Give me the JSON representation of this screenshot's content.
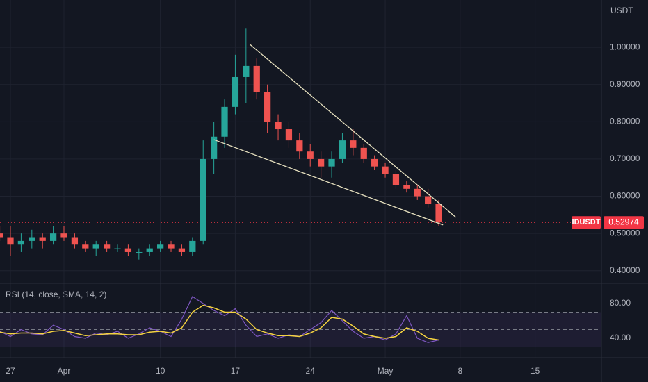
{
  "chart_data": [
    {
      "type": "candlestick",
      "symbol": "IDUSDT",
      "currency": "USDT",
      "x": [
        -1,
        0,
        1,
        2,
        3,
        4,
        5,
        6,
        7,
        8,
        9,
        10,
        11,
        12,
        13,
        14,
        15,
        16,
        17,
        18,
        19,
        20,
        21,
        22,
        23,
        24,
        25,
        26,
        27,
        28,
        29,
        30,
        31,
        32,
        33,
        34,
        35,
        36,
        37,
        38,
        39,
        40
      ],
      "open": [
        0.5,
        0.49,
        0.47,
        0.48,
        0.49,
        0.48,
        0.5,
        0.49,
        0.47,
        0.46,
        0.47,
        0.46,
        0.46,
        0.45,
        0.45,
        0.46,
        0.47,
        0.46,
        0.45,
        0.48,
        0.7,
        0.76,
        0.84,
        0.92,
        0.95,
        0.88,
        0.8,
        0.78,
        0.75,
        0.72,
        0.7,
        0.68,
        0.7,
        0.75,
        0.73,
        0.7,
        0.68,
        0.66,
        0.63,
        0.62,
        0.6,
        0.58
      ],
      "high": [
        0.52,
        0.52,
        0.5,
        0.51,
        0.5,
        0.52,
        0.52,
        0.5,
        0.48,
        0.48,
        0.48,
        0.47,
        0.47,
        0.46,
        0.47,
        0.48,
        0.48,
        0.47,
        0.49,
        0.75,
        0.8,
        0.86,
        0.98,
        1.05,
        0.97,
        0.9,
        0.82,
        0.8,
        0.77,
        0.74,
        0.72,
        0.72,
        0.77,
        0.78,
        0.74,
        0.71,
        0.69,
        0.67,
        0.64,
        0.63,
        0.62,
        0.59
      ],
      "low": [
        0.48,
        0.44,
        0.45,
        0.46,
        0.46,
        0.47,
        0.48,
        0.46,
        0.45,
        0.44,
        0.45,
        0.45,
        0.44,
        0.43,
        0.44,
        0.45,
        0.45,
        0.44,
        0.44,
        0.47,
        0.66,
        0.73,
        0.82,
        0.85,
        0.86,
        0.77,
        0.75,
        0.73,
        0.7,
        0.68,
        0.65,
        0.65,
        0.69,
        0.71,
        0.69,
        0.67,
        0.65,
        0.62,
        0.61,
        0.59,
        0.57,
        0.52
      ],
      "close": [
        0.49,
        0.47,
        0.48,
        0.49,
        0.48,
        0.5,
        0.49,
        0.47,
        0.46,
        0.47,
        0.46,
        0.46,
        0.45,
        0.45,
        0.46,
        0.47,
        0.46,
        0.45,
        0.48,
        0.7,
        0.76,
        0.84,
        0.92,
        0.95,
        0.88,
        0.8,
        0.78,
        0.75,
        0.72,
        0.7,
        0.68,
        0.7,
        0.75,
        0.73,
        0.7,
        0.68,
        0.66,
        0.63,
        0.62,
        0.6,
        0.58,
        0.53
      ],
      "up_color": "#26a69a",
      "down_color": "#ef5350",
      "last_price": 0.52974,
      "last_color": "#f23645",
      "xlim": [
        -0.974,
        55.19
      ],
      "xticks": [
        {
          "value": 0,
          "label": "27"
        },
        {
          "value": 5,
          "label": "Apr"
        },
        {
          "value": 14,
          "label": "10"
        },
        {
          "value": 21,
          "label": "17"
        },
        {
          "value": 28,
          "label": "24"
        },
        {
          "value": 35,
          "label": "May"
        },
        {
          "value": 42,
          "label": "8"
        },
        {
          "value": 49,
          "label": "15"
        }
      ],
      "ylim": [
        0.366,
        1.127
      ],
      "yticks": [
        {
          "value": 0.4,
          "label": "0.40000"
        },
        {
          "value": 0.5,
          "label": "0.50000"
        },
        {
          "value": 0.6,
          "label": "0.60000"
        },
        {
          "value": 0.7,
          "label": "0.70000"
        },
        {
          "value": 0.8,
          "label": "0.80000"
        },
        {
          "value": 0.9,
          "label": "0.90000"
        },
        {
          "value": 1,
          "label": "1.00000"
        }
      ],
      "grid": true,
      "trendlines": [
        {
          "x": [
            22.4,
            41.6
          ],
          "y": [
            1.007,
            0.5435
          ],
          "color": "#e8e2c0"
        },
        {
          "x": [
            19.0,
            40.4
          ],
          "y": [
            0.752,
            0.523
          ],
          "color": "#e8e2c0"
        }
      ]
    },
    {
      "type": "line",
      "title": "RSI (14, close, SMA, 14, 2)",
      "series": [
        {
          "name": "RSI",
          "color": "#7e57c2",
          "values": [
            48,
            42,
            50,
            45,
            44,
            55,
            50,
            42,
            40,
            46,
            44,
            48,
            40,
            45,
            52,
            48,
            42,
            62,
            88,
            80,
            72,
            66,
            74,
            55,
            42,
            45,
            40,
            44,
            42,
            50,
            58,
            72,
            60,
            48,
            40,
            42,
            38,
            45,
            66,
            40,
            35,
            38
          ]
        },
        {
          "name": "SMA",
          "color": "#f5d340",
          "values": [
            47,
            45,
            46,
            46,
            45,
            48,
            49,
            46,
            43,
            44,
            45,
            45,
            44,
            44,
            47,
            48,
            46,
            52,
            70,
            78,
            75,
            70,
            70,
            62,
            50,
            46,
            43,
            43,
            42,
            46,
            52,
            64,
            62,
            54,
            45,
            42,
            40,
            42,
            52,
            48,
            40,
            38
          ]
        }
      ],
      "ylim": [
        17.6,
        103.2
      ],
      "yticks": [
        {
          "value": 40,
          "label": "40.00"
        },
        {
          "value": 80,
          "label": "80.00"
        }
      ],
      "bands": [
        70,
        50,
        30
      ]
    }
  ]
}
